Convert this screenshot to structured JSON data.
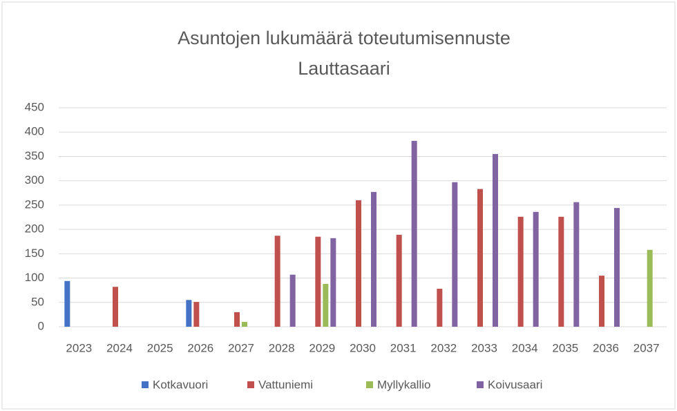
{
  "chart_data": {
    "type": "bar",
    "title": [
      "Asuntojen lukumäärä toteutumisennuste",
      "Lauttasaari"
    ],
    "categories": [
      "2023",
      "2024",
      "2025",
      "2026",
      "2027",
      "2028",
      "2029",
      "2030",
      "2031",
      "2032",
      "2033",
      "2034",
      "2035",
      "2036",
      "2037"
    ],
    "series": [
      {
        "name": "Kotkavuori",
        "color": "#4472c4",
        "values": [
          94,
          null,
          null,
          55,
          null,
          null,
          null,
          null,
          null,
          null,
          null,
          null,
          null,
          null,
          null
        ]
      },
      {
        "name": "Vattuniemi",
        "color": "#c0504d",
        "values": [
          null,
          82,
          null,
          51,
          30,
          187,
          185,
          260,
          189,
          78,
          283,
          226,
          226,
          105,
          null
        ]
      },
      {
        "name": "Myllykallio",
        "color": "#9bbb59",
        "values": [
          null,
          null,
          null,
          null,
          10,
          null,
          88,
          null,
          null,
          null,
          null,
          null,
          null,
          null,
          158
        ]
      },
      {
        "name": "Koivusaari",
        "color": "#8064a2",
        "values": [
          null,
          null,
          null,
          null,
          null,
          107,
          182,
          277,
          382,
          297,
          355,
          236,
          256,
          244,
          null
        ]
      }
    ],
    "ylim": [
      0,
      450
    ],
    "yticks": [
      0,
      50,
      100,
      150,
      200,
      250,
      300,
      350,
      400,
      450
    ],
    "grid": true,
    "legend": "bottom"
  }
}
